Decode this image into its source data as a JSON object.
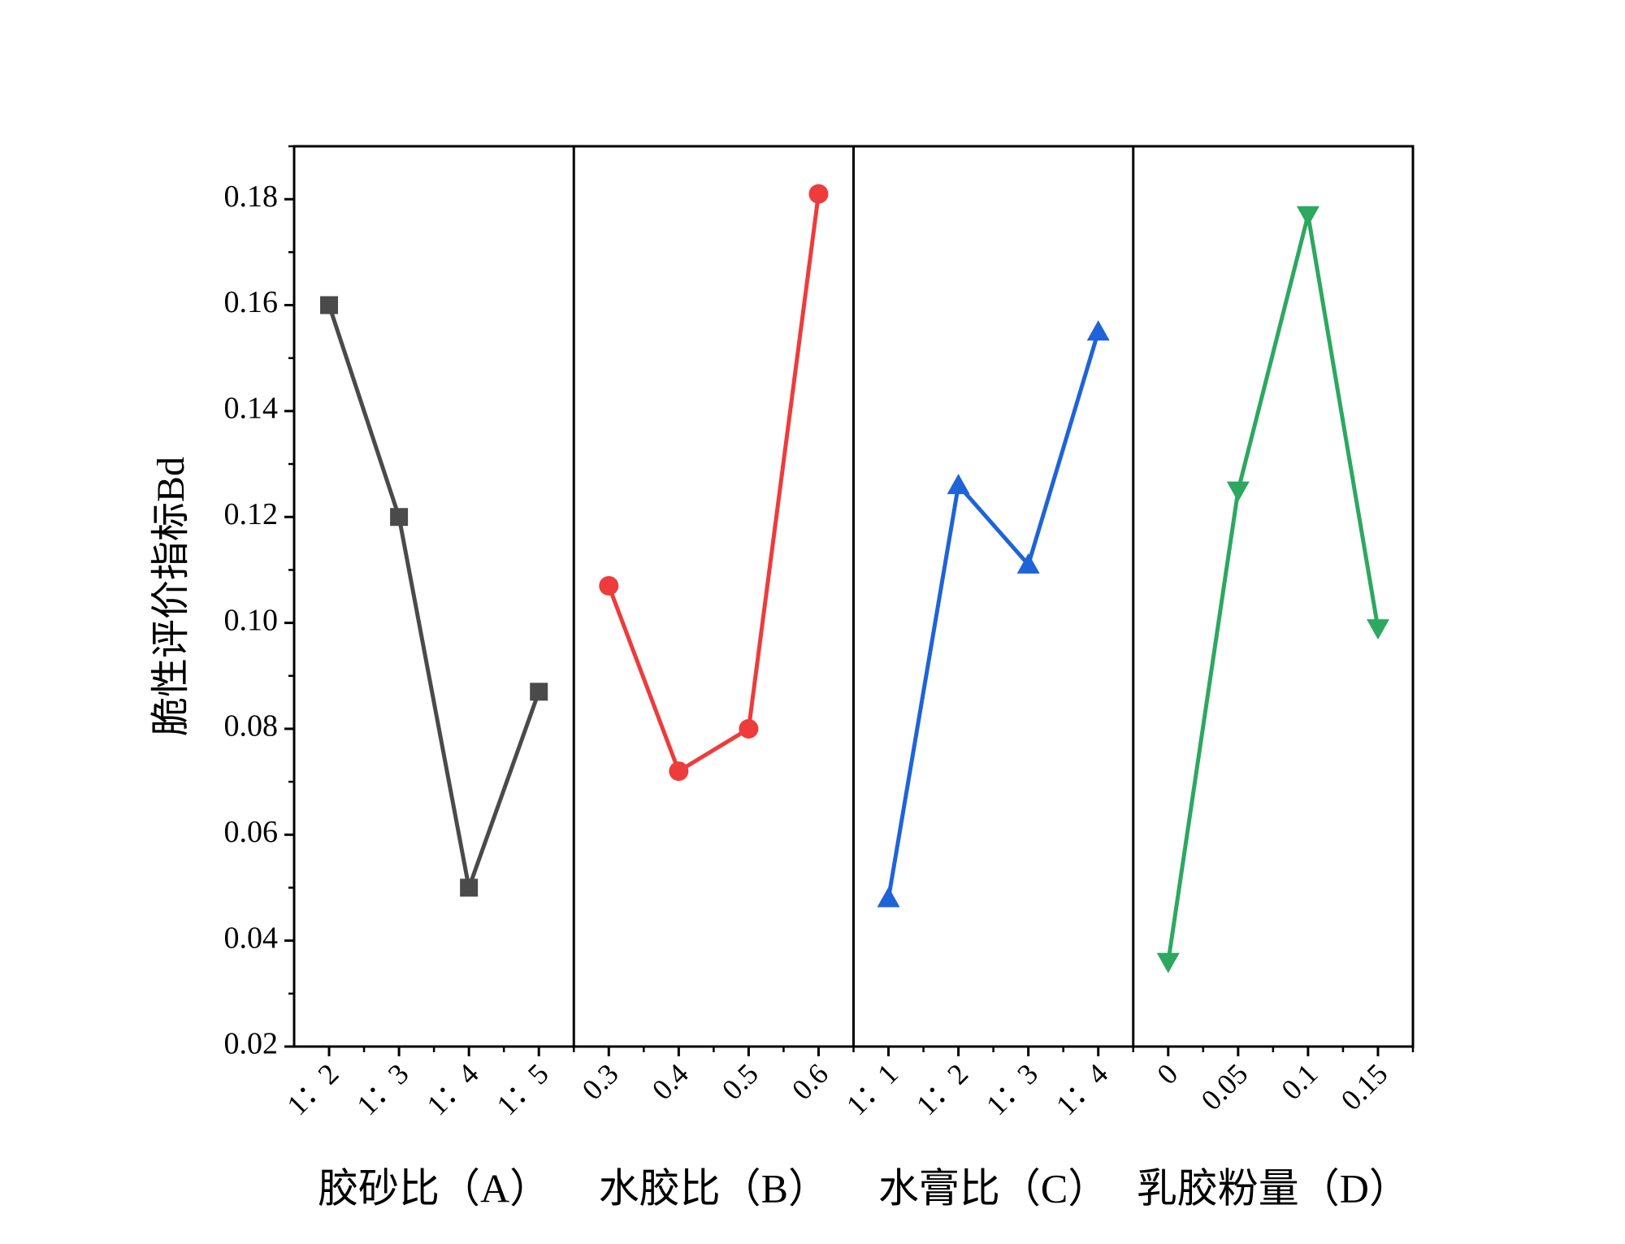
{
  "chart_data": {
    "type": "line",
    "y_label": "脆性评价指标Bd",
    "ylim": [
      0.02,
      0.19
    ],
    "yticks": [
      0.02,
      0.04,
      0.06,
      0.08,
      {
        "value": 0.1,
        "label": "0.10"
      },
      0.12,
      0.14,
      0.16,
      0.18
    ],
    "panels": [
      {
        "x_label": "胶砂比（A）",
        "categories": [
          "1：2",
          "1：3",
          "1：4",
          "1：5"
        ],
        "color": "#4a4a4a",
        "marker": "square",
        "values": [
          0.16,
          0.12,
          0.05,
          0.087
        ]
      },
      {
        "x_label": "水胶比（B）",
        "categories": [
          "0.3",
          "0.4",
          "0.5",
          "0.6"
        ],
        "color": "#ee3b3b",
        "marker": "circle",
        "values": [
          0.107,
          0.072,
          0.08,
          0.181
        ]
      },
      {
        "x_label": "水膏比（C）",
        "categories": [
          "1：1",
          "1：2",
          "1：3",
          "1：4"
        ],
        "color": "#1f63d8",
        "marker": "triangle-up",
        "values": [
          0.048,
          0.126,
          0.111,
          0.155
        ]
      },
      {
        "x_label": "乳胶粉量（D）",
        "categories": [
          "0",
          "0.05",
          "0.1",
          "0.15"
        ],
        "color": "#2ca860",
        "marker": "triangle-down",
        "values": [
          0.036,
          0.125,
          0.177,
          0.099
        ]
      }
    ]
  }
}
